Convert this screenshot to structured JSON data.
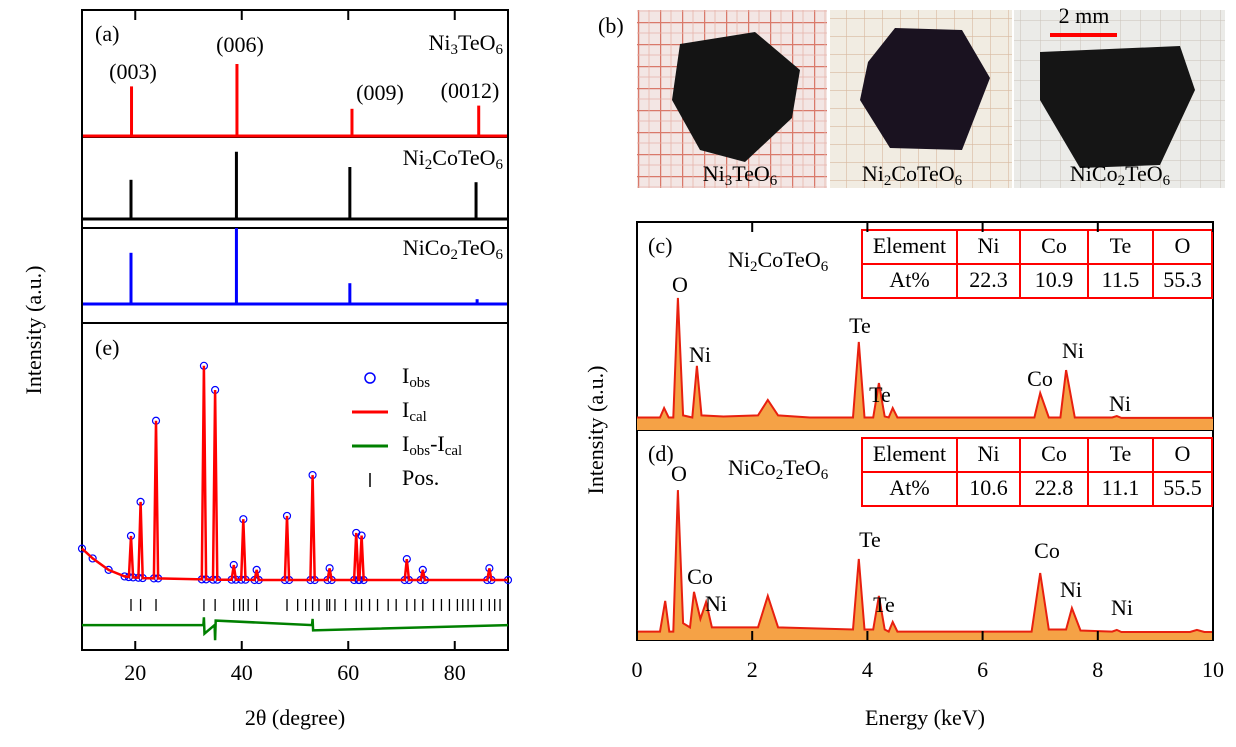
{
  "chart_data": [
    {
      "type": "stick",
      "panel_label": "(a)",
      "xlim": [
        10,
        90
      ],
      "ylim": [
        0,
        100
      ],
      "peak_labels": [
        "(003)",
        "(006)",
        "(009)",
        "(0012)"
      ],
      "series": [
        {
          "name": "Ni3TeO6",
          "color": "#ff0000",
          "x": [
            19.3,
            39.1,
            60.7,
            84.5
          ],
          "values": [
            62,
            90,
            34,
            38
          ]
        },
        {
          "name": "Ni2CoTeO6",
          "color": "#000000",
          "x": [
            19.2,
            39.0,
            60.3,
            84.0
          ],
          "values": [
            49,
            84,
            65,
            46
          ]
        },
        {
          "name": "NiCo2TeO6",
          "color": "#0000ff",
          "x": [
            19.2,
            39.0,
            60.3,
            84.2
          ],
          "values": [
            64,
            95,
            26,
            6
          ]
        }
      ]
    },
    {
      "type": "rietveld",
      "panel_label": "(e)",
      "xlim": [
        10,
        90
      ],
      "xticks": [
        20,
        40,
        60,
        80
      ],
      "ylim": [
        0,
        100
      ],
      "xlabel": "2θ (degree)",
      "ylabel": "Intensity (a.u.)",
      "series": [
        {
          "name": "Iobs",
          "color": "#0000ff",
          "style": "circle",
          "x": [
            10,
            12,
            15,
            18,
            18.8,
            19.2,
            19.6,
            20.6,
            21.0,
            21.4,
            23.5,
            23.9,
            24.3,
            32.5,
            32.9,
            33.3,
            34.6,
            35.0,
            35.4,
            38.1,
            38.5,
            38.9,
            39.9,
            40.3,
            40.7,
            42.4,
            42.8,
            43.2,
            48.1,
            48.5,
            48.9,
            52.9,
            53.3,
            53.7,
            56.1,
            56.5,
            56.9,
            61.1,
            61.5,
            61.9,
            62.1,
            62.5,
            62.9,
            70.6,
            71.0,
            71.4,
            73.6,
            74,
            74.4,
            86.1,
            86.5,
            86.9,
            90
          ],
          "values": [
            31,
            28,
            24.5,
            22.5,
            22.3,
            34.9,
            22.2,
            22.1,
            45.3,
            22,
            21.9,
            70.1,
            21.9,
            21.6,
            86.9,
            21.6,
            21.5,
            79.5,
            21.5,
            21.5,
            26,
            21.5,
            21.5,
            40,
            21.5,
            21.4,
            24.5,
            21.4,
            21.4,
            41,
            21.4,
            21.4,
            53.5,
            21.4,
            21.4,
            25,
            21.4,
            21.4,
            35.8,
            21.4,
            21.4,
            35,
            21.4,
            21.4,
            27.8,
            21.4,
            21.4,
            24.5,
            21.4,
            21.4,
            25,
            21.4,
            21.4
          ]
        },
        {
          "name": "Ical",
          "color": "#ff0000",
          "style": "line",
          "x": [
            10,
            12,
            15,
            18,
            18.8,
            19.2,
            19.6,
            20.6,
            21.0,
            21.4,
            23.5,
            23.9,
            24.3,
            32.5,
            32.9,
            33.3,
            34.6,
            35.0,
            35.4,
            38.1,
            38.5,
            38.9,
            39.9,
            40.3,
            40.7,
            42.4,
            42.8,
            43.2,
            48.1,
            48.5,
            48.9,
            52.9,
            53.3,
            53.7,
            56.1,
            56.5,
            56.9,
            61.1,
            61.5,
            61.9,
            62.1,
            62.5,
            62.9,
            70.6,
            71.0,
            71.4,
            73.6,
            74,
            74.4,
            86.1,
            86.5,
            86.9,
            90
          ],
          "values": [
            31,
            28,
            24.5,
            22.5,
            22.3,
            34.9,
            22.2,
            22.1,
            45.3,
            22,
            21.9,
            70.1,
            21.9,
            21.6,
            86.9,
            21.6,
            21.5,
            79.5,
            21.5,
            21.5,
            26,
            21.5,
            21.5,
            40,
            21.5,
            21.4,
            24.5,
            21.4,
            21.4,
            41,
            21.4,
            21.4,
            53.5,
            21.4,
            21.4,
            25,
            21.4,
            21.4,
            35.8,
            21.4,
            21.4,
            35,
            21.4,
            21.4,
            27.8,
            21.4,
            21.4,
            24.5,
            21.4,
            21.4,
            25,
            21.4,
            21.4
          ]
        },
        {
          "name": "Iobs-Ical",
          "color": "#008000",
          "style": "line",
          "x": [
            10,
            32.8,
            32.9,
            33.0,
            34.9,
            35.0,
            35.1,
            53.2,
            53.3,
            53.4,
            90
          ],
          "values": [
            7.6,
            7.6,
            10,
            5,
            7.6,
            3,
            9,
            7.6,
            9.5,
            6,
            7.6
          ]
        },
        {
          "name": "Pos.",
          "color": "#000000",
          "style": "tick",
          "x": [
            19.2,
            21.0,
            23.9,
            32.9,
            35.0,
            38.5,
            39.6,
            40.3,
            41.2,
            42.8,
            48.5,
            50.5,
            52.0,
            53.3,
            54.5,
            56.0,
            56.5,
            57.5,
            59.5,
            61.5,
            62.5,
            64.0,
            65.5,
            67.5,
            69.0,
            71.0,
            72.5,
            74.0,
            76.0,
            77.5,
            79.0,
            80.5,
            81.5,
            82.5,
            83.5,
            85.0,
            86.5,
            87.5,
            88.5
          ]
        }
      ]
    },
    {
      "type": "eds",
      "panel_label": "(c)",
      "label": "Ni2CoTeO6",
      "xlim": [
        0,
        10
      ],
      "ylim": [
        0,
        100
      ],
      "annotations": [
        "O",
        "Ni",
        "Te",
        "Te",
        "Co",
        "Ni",
        "Ni"
      ],
      "table": {
        "header": [
          "Element",
          "Ni",
          "Co",
          "Te",
          "O"
        ],
        "rows": [
          [
            "At%",
            22.3,
            10.9,
            11.5,
            55.3
          ]
        ]
      },
      "series": [
        {
          "color": "#e8200f",
          "fill": "#f5a246",
          "x": [
            0,
            0.4,
            0.47,
            0.55,
            0.63,
            0.71,
            0.8,
            0.96,
            1.04,
            1.12,
            1.5,
            2.1,
            2.27,
            2.45,
            3.0,
            3.75,
            3.85,
            3.95,
            4.1,
            4.2,
            4.3,
            4.37,
            4.44,
            4.52,
            5.0,
            6.9,
            7.0,
            7.15,
            7.35,
            7.45,
            7.6,
            8.25,
            8.33,
            8.41,
            10
          ],
          "values": [
            6,
            6,
            10.6,
            6,
            6,
            63.5,
            7,
            6,
            30.8,
            7,
            6.5,
            7,
            14.4,
            7,
            6,
            6,
            42.3,
            6,
            6,
            22.6,
            6.5,
            6,
            10.6,
            6,
            6,
            6,
            17.8,
            6,
            6,
            28.8,
            6,
            6,
            6.7,
            5.8,
            5.8
          ]
        }
      ]
    },
    {
      "type": "eds",
      "panel_label": "(d)",
      "label": "NiCo2TeO6",
      "xlim": [
        0,
        10
      ],
      "ylim": [
        0,
        100
      ],
      "xticks": [
        0,
        2,
        4,
        6,
        8,
        10
      ],
      "xlabel": "Energy (keV)",
      "ylabel": "Intensity (a.u.)",
      "annotations": [
        "O",
        "Co",
        "Ni",
        "Te",
        "Te",
        "Co",
        "Ni",
        "Ni"
      ],
      "table": {
        "header": [
          "Element",
          "Ni",
          "Co",
          "Te",
          "O"
        ],
        "rows": [
          [
            "At%",
            10.6,
            22.8,
            11.1,
            55.5
          ]
        ]
      },
      "series": [
        {
          "color": "#e8200f",
          "fill": "#f5a246",
          "x": [
            0,
            0.4,
            0.49,
            0.56,
            0.63,
            0.71,
            0.8,
            0.92,
            0.99,
            1.1,
            1.2,
            1.3,
            2.1,
            2.27,
            2.45,
            3.75,
            3.85,
            3.95,
            4.1,
            4.2,
            4.3,
            4.37,
            4.44,
            4.52,
            6.85,
            7.0,
            7.15,
            7.45,
            7.55,
            7.7,
            8.25,
            8.33,
            8.41,
            9.6,
            9.72,
            9.85,
            10
          ],
          "values": [
            4,
            4,
            18.6,
            4,
            4,
            71.4,
            8,
            6,
            22.9,
            10,
            18.1,
            6,
            6,
            21,
            6,
            5,
            38.6,
            5,
            5,
            21,
            5,
            4,
            8.6,
            4,
            4,
            31.9,
            5,
            5,
            15.2,
            4.5,
            4,
            4.8,
            3.8,
            3.8,
            4.8,
            3.8,
            3.8
          ]
        }
      ]
    }
  ],
  "photos": {
    "panel_label": "(b)",
    "scale_bar": "2 mm",
    "labels": [
      "Ni3TeO6",
      "Ni2CoTeO6",
      "NiCo2TeO6"
    ]
  }
}
